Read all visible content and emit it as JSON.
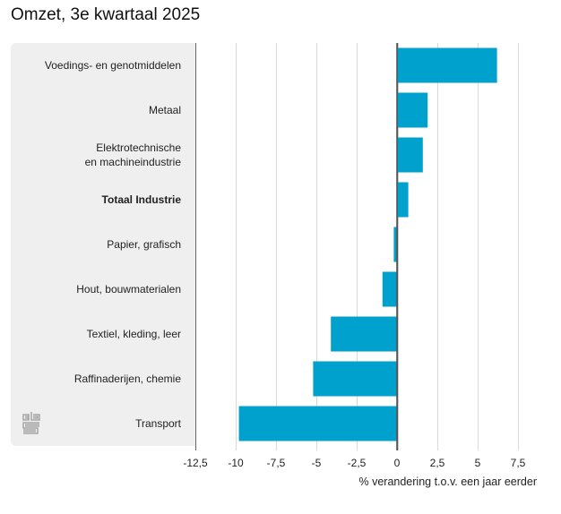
{
  "chart_data": {
    "type": "bar",
    "orientation": "horizontal",
    "title": "Omzet, 3e kwartaal 2025",
    "xlabel": "% verandering t.o.v. een jaar eerder",
    "ylabel": "",
    "categories": [
      "Voedings- en genotmiddelen",
      "Metaal",
      "Elektrotechnische en machineindustrie",
      "Totaal Industrie",
      "Papier, grafisch",
      "Hout, bouwmaterialen",
      "Textiel, kleding, leer",
      "Raffinaderijen, chemie",
      "Transport"
    ],
    "category_lines": [
      [
        "Voedings- en genotmiddelen"
      ],
      [
        "Metaal"
      ],
      [
        "Elektrotechnische",
        "en machineindustrie"
      ],
      [
        "Totaal Industrie"
      ],
      [
        "Papier, grafisch"
      ],
      [
        "Hout, bouwmaterialen"
      ],
      [
        "Textiel, kleding, leer"
      ],
      [
        "Raffinaderijen, chemie"
      ],
      [
        "Transport"
      ]
    ],
    "bold_categories": [
      "Totaal Industrie"
    ],
    "values": [
      6.2,
      1.9,
      1.6,
      0.7,
      -0.2,
      -0.9,
      -4.1,
      -5.2,
      -9.8
    ],
    "xlim": [
      -12.5,
      7.5
    ],
    "xticks": [
      -12.5,
      -10,
      -7.5,
      -5,
      -2.5,
      0,
      2.5,
      5,
      7.5
    ],
    "xtick_labels": [
      "-12,5",
      "-10",
      "-7,5",
      "-5",
      "-2,5",
      "0",
      "2,5",
      "5",
      "7,5"
    ],
    "grid": true,
    "legend": "none",
    "bar_color": "#00a1cd"
  },
  "branding": {
    "logo": "cbs-logo"
  }
}
